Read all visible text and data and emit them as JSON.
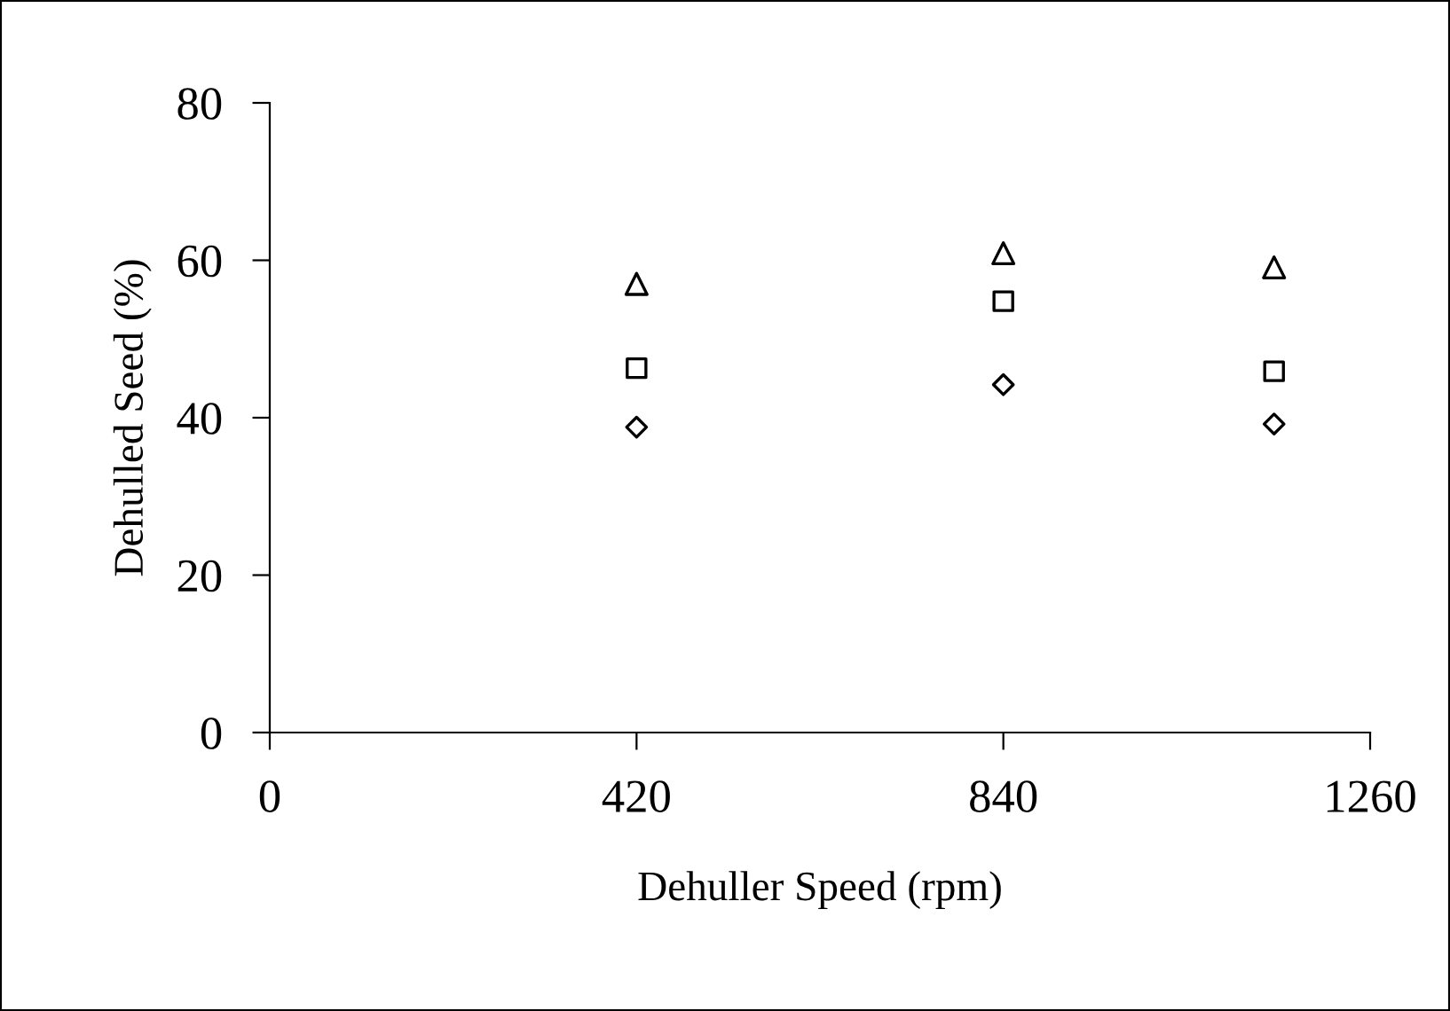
{
  "chart_data": {
    "type": "scatter",
    "xlabel": "Dehuller Speed (rpm)",
    "ylabel": "Dehulled Seed (%)",
    "xlim": [
      0,
      1260
    ],
    "xticks": [
      0,
      420,
      840,
      1260
    ],
    "ylim": [
      0,
      80
    ],
    "yticks": [
      0,
      20,
      40,
      60,
      80
    ],
    "grid": false,
    "legend": false,
    "series": [
      {
        "color": "#000000",
        "marker": "triangle",
        "x": [
          420,
          840,
          1150
        ],
        "values": [
          57,
          60.9,
          59.1
        ]
      },
      {
        "color": "#000000",
        "marker": "square",
        "x": [
          420,
          840,
          1150
        ],
        "values": [
          46.3,
          54.8,
          45.9
        ]
      },
      {
        "color": "#000000",
        "marker": "diamond",
        "x": [
          420,
          840,
          1150
        ],
        "values": [
          38.8,
          44.2,
          39.2
        ]
      }
    ]
  }
}
